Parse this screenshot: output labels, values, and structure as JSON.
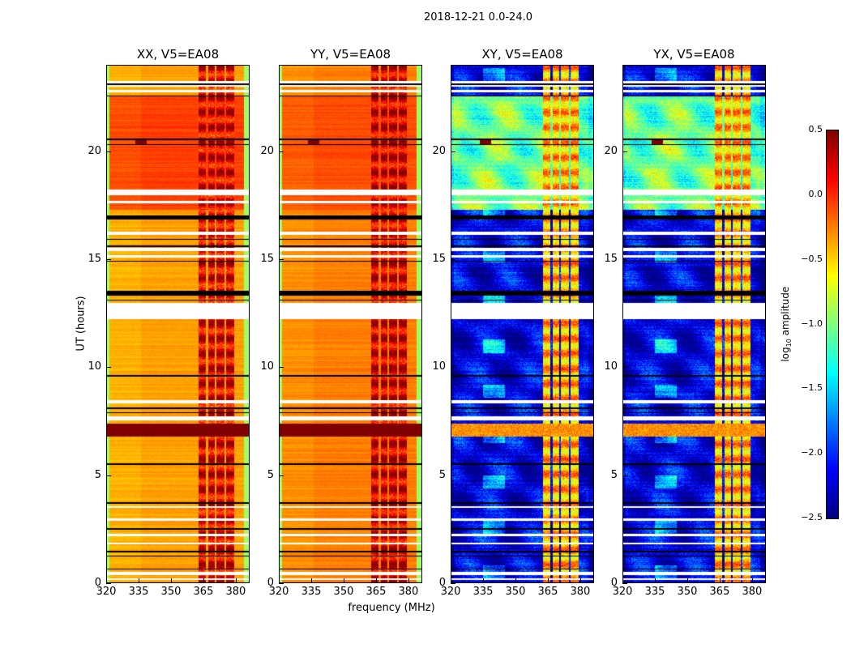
{
  "chart_data": {
    "type": "heatmap",
    "title": "2018-12-21 0.0-24.0",
    "xlabel": "frequency (MHz)",
    "ylabel": "UT (hours)",
    "xlim": [
      320,
      386.4
    ],
    "ylim": [
      0,
      24
    ],
    "xticks": [
      "320",
      "335",
      "350",
      "365",
      "380"
    ],
    "xtick_values": [
      320,
      335,
      350,
      365,
      380
    ],
    "yticks": [
      "0",
      "5",
      "10",
      "15",
      "20"
    ],
    "ytick_values": [
      0,
      5,
      10,
      15,
      20
    ],
    "colormap": "jet",
    "colorbar": {
      "label_main": "log",
      "label_sub": "10",
      "label_rest": " amplitude",
      "range": [
        -2.5,
        0.5
      ],
      "ticks": [
        "0.5",
        "0.0",
        "−0.5",
        "−1.0",
        "−1.5",
        "−2.0",
        "−2.5"
      ],
      "tick_values": [
        0.5,
        0.0,
        -0.5,
        -1.0,
        -1.5,
        -2.0,
        -2.5
      ]
    },
    "rfi_channels_mhz": [
      [
        362.5,
        366
      ],
      [
        367,
        370
      ],
      [
        371,
        374.5
      ],
      [
        375.5,
        379
      ]
    ],
    "flagged_white_hours": [
      [
        23.0,
        23.25
      ],
      [
        22.75,
        22.85
      ],
      [
        18.0,
        18.25
      ],
      [
        17.6,
        17.7
      ],
      [
        16.15,
        16.3
      ],
      [
        15.4,
        15.55
      ],
      [
        15.1,
        15.2
      ],
      [
        12.25,
        13.0
      ],
      [
        8.35,
        8.5
      ],
      [
        7.55,
        7.75
      ],
      [
        3.5,
        3.6
      ],
      [
        2.9,
        3.0
      ],
      [
        2.2,
        2.3
      ],
      [
        1.8,
        1.9
      ],
      [
        0.4,
        0.55
      ],
      [
        0.15,
        0.25
      ]
    ],
    "flagged_black_hours": [
      [
        13.35,
        13.55
      ],
      [
        16.85,
        17.05
      ],
      [
        23.1,
        23.15
      ],
      [
        22.55,
        22.6
      ],
      [
        20.55,
        20.6
      ],
      [
        20.3,
        20.35
      ],
      [
        15.9,
        15.95
      ],
      [
        15.6,
        15.65
      ],
      [
        14.9,
        14.95
      ],
      [
        13.1,
        13.15
      ],
      [
        9.6,
        9.65
      ],
      [
        8.1,
        8.15
      ],
      [
        7.9,
        7.95
      ],
      [
        5.5,
        5.55
      ],
      [
        3.7,
        3.75
      ],
      [
        2.5,
        2.55
      ],
      [
        1.45,
        1.5
      ],
      [
        1.25,
        1.3
      ],
      [
        0.65,
        0.7
      ]
    ],
    "series": [
      {
        "name": "XX, V5=EA08",
        "type": "parallel",
        "base_log_amp": -0.4,
        "night_log_amp": -0.1,
        "rfi_log_amp": 0.2,
        "burst_hours": [
          6.8,
          7.4
        ],
        "burst_log_amp": 0.5
      },
      {
        "name": "YY, V5=EA08",
        "type": "parallel",
        "base_log_amp": -0.3,
        "night_log_amp": -0.15,
        "rfi_log_amp": 0.25,
        "burst_hours": [
          6.8,
          7.4
        ],
        "burst_log_amp": 0.5
      },
      {
        "name": "XY, V5=EA08",
        "type": "cross",
        "base_log_amp": -2.2,
        "night_log_amp": -1.05,
        "rfi_log_amp": -0.4,
        "burst_hours": [
          6.8,
          7.4
        ],
        "burst_log_amp": -0.3
      },
      {
        "name": "YX, V5=EA08",
        "type": "cross",
        "base_log_amp": -2.2,
        "night_log_amp": -1.05,
        "rfi_log_amp": -0.4,
        "burst_hours": [
          6.8,
          7.4
        ],
        "burst_log_amp": -0.3
      }
    ]
  }
}
